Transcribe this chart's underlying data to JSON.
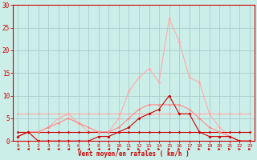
{
  "xlabel": "Vent moyen/en rafales ( km/h )",
  "background_color": "#cceee8",
  "grid_color": "#aacccc",
  "xlim": [
    -0.5,
    23.5
  ],
  "ylim": [
    0,
    30
  ],
  "yticks": [
    0,
    5,
    10,
    15,
    20,
    25,
    30
  ],
  "xticks": [
    0,
    1,
    2,
    3,
    4,
    5,
    6,
    7,
    8,
    9,
    10,
    11,
    12,
    13,
    14,
    15,
    16,
    17,
    18,
    19,
    20,
    21,
    22,
    23
  ],
  "lines": [
    {
      "label": "light_flat",
      "color": "#ffaaaa",
      "x": [
        0,
        1,
        2,
        3,
        4,
        5,
        6,
        7,
        8,
        9,
        10,
        11,
        12,
        13,
        14,
        15,
        16,
        17,
        18,
        19,
        20,
        21,
        22,
        23
      ],
      "y": [
        6,
        6,
        6,
        6,
        6,
        6,
        6,
        6,
        6,
        6,
        6,
        6,
        6,
        6,
        6,
        6,
        6,
        6,
        6,
        6,
        6,
        6,
        6,
        6
      ],
      "lw": 0.8,
      "marker": "D",
      "ms": 2.0,
      "zorder": 1
    },
    {
      "label": "light_peaked",
      "color": "#ffaaaa",
      "x": [
        0,
        1,
        2,
        3,
        4,
        5,
        6,
        7,
        8,
        9,
        10,
        11,
        12,
        13,
        14,
        15,
        16,
        17,
        18,
        19,
        20,
        21,
        22,
        23
      ],
      "y": [
        1,
        2,
        2,
        3,
        5,
        6,
        4,
        2,
        2,
        2,
        5,
        11,
        14,
        16,
        13,
        27,
        22,
        14,
        13,
        6,
        3,
        1,
        0,
        0
      ],
      "lw": 0.8,
      "marker": "D",
      "ms": 2.0,
      "zorder": 2
    },
    {
      "label": "dark_flat",
      "color": "#cc0000",
      "x": [
        0,
        1,
        2,
        3,
        4,
        5,
        6,
        7,
        8,
        9,
        10,
        11,
        12,
        13,
        14,
        15,
        16,
        17,
        18,
        19,
        20,
        21,
        22,
        23
      ],
      "y": [
        2,
        2,
        2,
        2,
        2,
        2,
        2,
        2,
        2,
        2,
        2,
        2,
        2,
        2,
        2,
        2,
        2,
        2,
        2,
        2,
        2,
        2,
        2,
        2
      ],
      "lw": 0.8,
      "marker": "D",
      "ms": 1.8,
      "zorder": 3
    },
    {
      "label": "mid_light",
      "color": "#ff8888",
      "x": [
        0,
        1,
        2,
        3,
        4,
        5,
        6,
        7,
        8,
        9,
        10,
        11,
        12,
        13,
        14,
        15,
        16,
        17,
        18,
        19,
        20,
        21,
        22,
        23
      ],
      "y": [
        1,
        2,
        2,
        3,
        4,
        5,
        4,
        3,
        2,
        2,
        3,
        5,
        7,
        8,
        8,
        8,
        8,
        7,
        5,
        3,
        2,
        1,
        0,
        0
      ],
      "lw": 0.8,
      "marker": "D",
      "ms": 1.8,
      "zorder": 4
    },
    {
      "label": "dark_peaked",
      "color": "#cc0000",
      "x": [
        0,
        1,
        2,
        3,
        4,
        5,
        6,
        7,
        8,
        9,
        10,
        11,
        12,
        13,
        14,
        15,
        16,
        17,
        18,
        19,
        20,
        21,
        22,
        23
      ],
      "y": [
        1,
        2,
        0,
        0,
        0,
        0,
        0,
        0,
        1,
        1,
        2,
        3,
        5,
        6,
        7,
        10,
        6,
        6,
        2,
        1,
        1,
        1,
        0,
        0
      ],
      "lw": 0.8,
      "marker": "D",
      "ms": 2.0,
      "zorder": 5
    }
  ],
  "arrows": {
    "color": "#cc0000",
    "x": [
      0,
      1,
      2,
      3,
      4,
      5,
      6,
      7,
      8,
      9,
      10,
      11,
      12,
      13,
      14,
      15,
      16,
      17,
      18,
      19,
      20,
      21,
      22,
      23
    ],
    "directions": [
      -1,
      -1,
      -1,
      -1,
      -1,
      -1,
      -1,
      -1,
      -1,
      -1,
      1,
      1,
      1,
      1,
      1,
      1,
      1,
      1,
      1,
      1,
      1,
      1,
      1,
      1
    ]
  }
}
